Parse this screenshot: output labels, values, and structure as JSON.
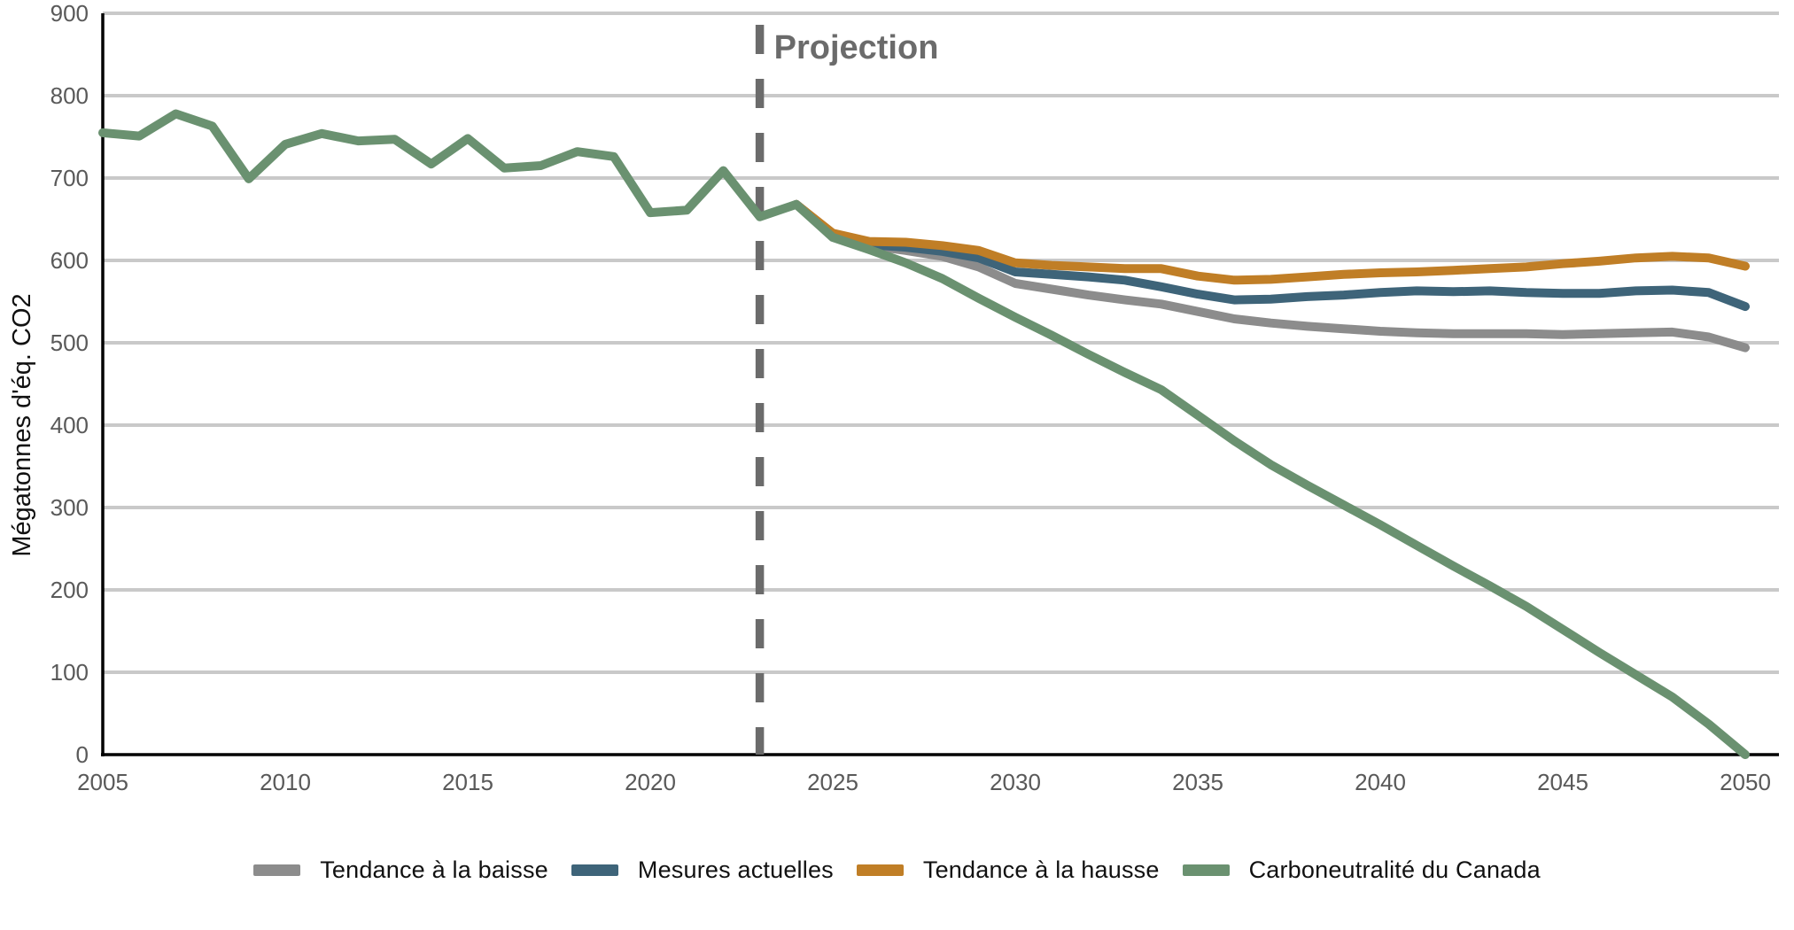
{
  "chart_data": {
    "type": "line",
    "title": "",
    "xlabel": "",
    "ylabel": "Mégatonnes d'éq. CO2",
    "xlim": [
      2005,
      2050
    ],
    "ylim": [
      0,
      900
    ],
    "x_ticks": [
      2005,
      2010,
      2015,
      2020,
      2025,
      2030,
      2035,
      2040,
      2045,
      2050
    ],
    "y_ticks": [
      0,
      100,
      200,
      300,
      400,
      500,
      600,
      700,
      800,
      900
    ],
    "grid": "horizontal",
    "legend_position": "bottom",
    "projection_divider": {
      "x": 2023,
      "label": "Projection"
    },
    "x_start_year": 2005,
    "x_end_year": 2050,
    "series": [
      {
        "name": "Tendance à la baisse",
        "color": "#8c8c8c",
        "start_year": 2024,
        "values": [
          668,
          631,
          618,
          612,
          605,
          592,
          572,
          565,
          558,
          552,
          547,
          538,
          529,
          524,
          520,
          517,
          514,
          512,
          511,
          511,
          511,
          510,
          511,
          512,
          513,
          507,
          494
        ]
      },
      {
        "name": "Mesures actuelles",
        "color": "#3e6479",
        "start_year": 2024,
        "values": [
          668,
          632,
          619,
          616,
          611,
          603,
          586,
          583,
          580,
          576,
          568,
          559,
          552,
          553,
          556,
          558,
          561,
          563,
          562,
          563,
          561,
          560,
          560,
          563,
          564,
          561,
          544
        ]
      },
      {
        "name": "Tendance à la hausse",
        "color": "#c07e26",
        "start_year": 2024,
        "values": [
          668,
          633,
          623,
          622,
          618,
          612,
          597,
          594,
          592,
          590,
          590,
          581,
          576,
          577,
          580,
          583,
          585,
          586,
          588,
          590,
          592,
          596,
          599,
          603,
          605,
          603,
          593
        ]
      },
      {
        "name": "Carboneutralité du Canada",
        "color": "#6a9170",
        "start_year": 2005,
        "values": [
          755,
          751,
          778,
          763,
          699,
          741,
          754,
          745,
          747,
          717,
          748,
          712,
          715,
          732,
          726,
          658,
          661,
          709,
          653,
          668,
          628,
          613,
          597,
          578,
          554,
          531,
          509,
          486,
          464,
          443,
          412,
          381,
          352,
          327,
          303,
          279,
          254,
          229,
          205,
          180,
          152,
          124,
          97,
          70,
          37,
          0
        ]
      }
    ]
  },
  "labels": {
    "projection": "Projection",
    "y_axis_title": "Mégatonnes d'éq. CO2"
  },
  "style_colors": {
    "gridline": "#c9c9c9",
    "axis": "#000000",
    "tick_text": "#595959",
    "projection": "#6b6b6b"
  }
}
